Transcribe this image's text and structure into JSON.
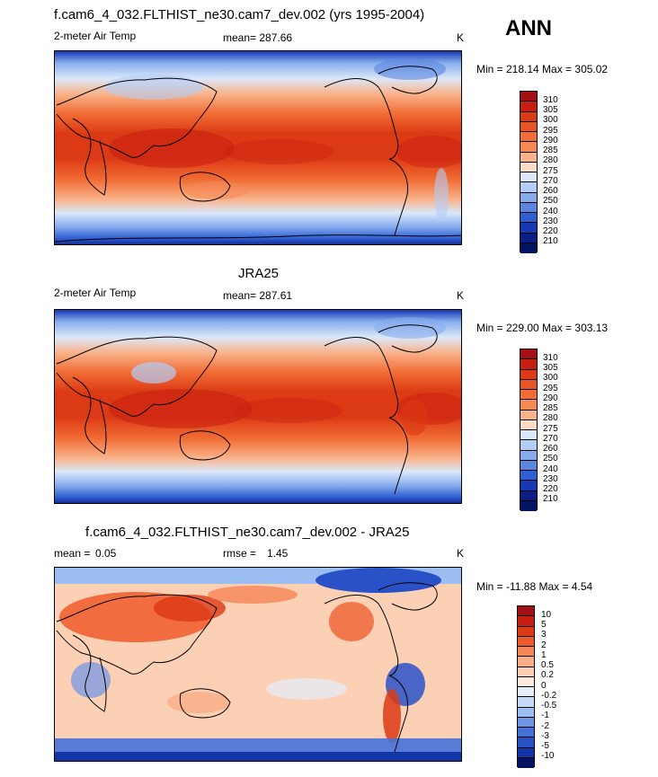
{
  "header": {
    "season": "ANN"
  },
  "panel_top": {
    "title": "f.cam6_4_032.FLTHIST_ne30.cam7_dev.002 (yrs 1995-2004)",
    "variable": "2-meter Air Temp",
    "stat": "mean= 287.66",
    "units": "K",
    "minmax": "Min = 218.14 Max = 305.02"
  },
  "panel_mid": {
    "title": "JRA25",
    "variable": "2-meter Air Temp",
    "stat": "mean= 287.61",
    "units": "K",
    "minmax": "Min = 229.00 Max = 303.13"
  },
  "panel_bot": {
    "title": "f.cam6_4_032.FLTHIST_ne30.cam7_dev.002 - JRA25",
    "mean_label": "mean =",
    "mean_value": "0.05",
    "rmse_label": "rmse =",
    "rmse_value": "1.45",
    "units": "K",
    "minmax": "Min = -11.88 Max =   4.54"
  },
  "colorbar_abs": {
    "labels": [
      "310",
      "305",
      "300",
      "295",
      "290",
      "285",
      "280",
      "275",
      "270",
      "260",
      "250",
      "240",
      "230",
      "220",
      "210"
    ],
    "colors": [
      "#a50f15",
      "#c81d12",
      "#dc3a14",
      "#e95424",
      "#f16d35",
      "#f68a55",
      "#f9b28a",
      "#fcdcc4",
      "#dbe8fa",
      "#b2cdf6",
      "#87acee",
      "#5a86e0",
      "#2f5fd3",
      "#1439b3",
      "#0a1e84",
      "#031361"
    ]
  },
  "colorbar_diff": {
    "labels": [
      "10",
      "5",
      "3",
      "2",
      "1",
      "0.5",
      "0.2",
      "0",
      "-0.2",
      "-0.5",
      "-1",
      "-2",
      "-3",
      "-5",
      "-10"
    ],
    "colors": [
      "#a50f15",
      "#c81d12",
      "#dc3a14",
      "#ee5a2a",
      "#f58656",
      "#f9ae87",
      "#fcd0b5",
      "#fdebdd",
      "#e4eefc",
      "#c6dbf7",
      "#9cbdf1",
      "#6e96e5",
      "#4672d8",
      "#2a52c8",
      "#1236a8",
      "#031361"
    ]
  }
}
